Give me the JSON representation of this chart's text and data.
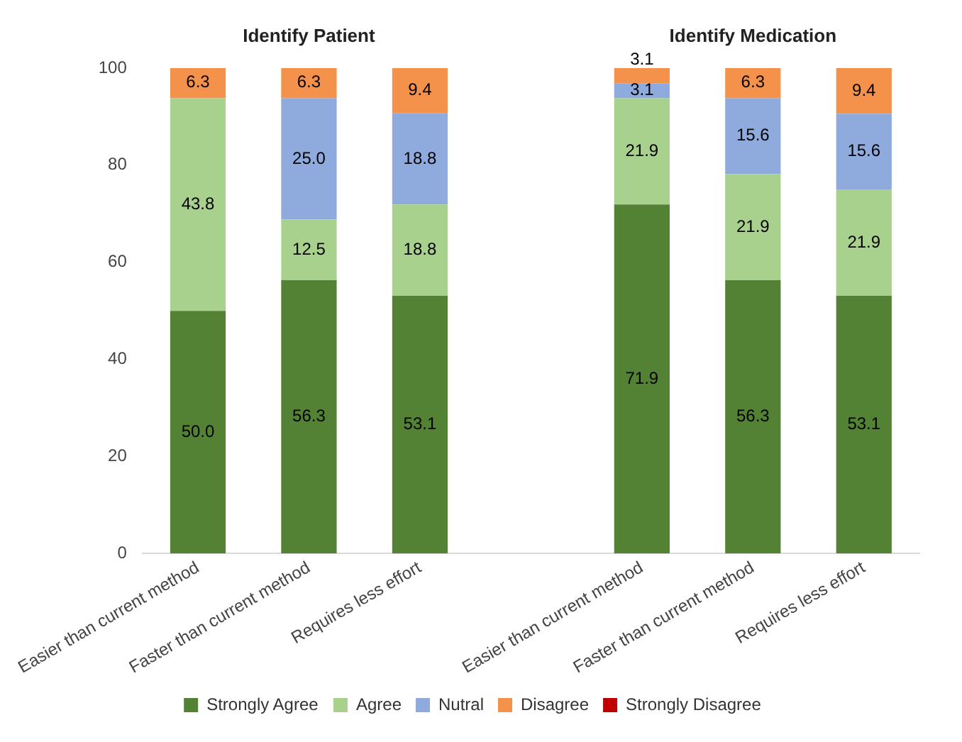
{
  "chart_data": {
    "type": "bar",
    "stacked": true,
    "annotations": [
      "Identify Patient",
      "Identify Medication"
    ],
    "categories": [
      "Easier than current method",
      "Faster than current method",
      "Requires less effort",
      null,
      "Easier than current method",
      "Faster than current method",
      "Requires less effort"
    ],
    "series": [
      {
        "name": "Strongly Agree",
        "color": "#548235",
        "values": [
          50.0,
          56.3,
          53.1,
          null,
          71.9,
          56.3,
          53.1
        ],
        "value_labels": [
          "50.0",
          "56.3",
          "53.1",
          null,
          "71.9",
          "56.3",
          "53.1"
        ]
      },
      {
        "name": "Agree",
        "color": "#a9d18e",
        "values": [
          43.8,
          12.5,
          18.8,
          null,
          21.9,
          21.9,
          21.9
        ],
        "value_labels": [
          "43.8",
          "12.5",
          "18.8",
          null,
          "21.9",
          "21.9",
          "21.9"
        ]
      },
      {
        "name": "Nutral",
        "color": "#8faadc",
        "values": [
          null,
          25.0,
          18.8,
          null,
          3.1,
          15.6,
          15.6
        ],
        "value_labels": [
          null,
          "25.0",
          "18.8",
          null,
          "3.1",
          "15.6",
          "15.6"
        ]
      },
      {
        "name": "Disagree",
        "color": "#f4914a",
        "values": [
          6.3,
          6.3,
          9.4,
          null,
          3.1,
          6.3,
          9.4
        ],
        "value_labels": [
          "6.3",
          "6.3",
          "9.4",
          null,
          "3.1",
          "6.3",
          "9.4"
        ]
      },
      {
        "name": "Strongly Disagree",
        "color": "#c00000",
        "values": [
          null,
          null,
          null,
          null,
          null,
          null,
          null
        ]
      }
    ],
    "ylim": [
      0,
      100
    ],
    "yticks": [
      0,
      20,
      40,
      60,
      80,
      100
    ],
    "grid": false,
    "legend": "bottom"
  }
}
